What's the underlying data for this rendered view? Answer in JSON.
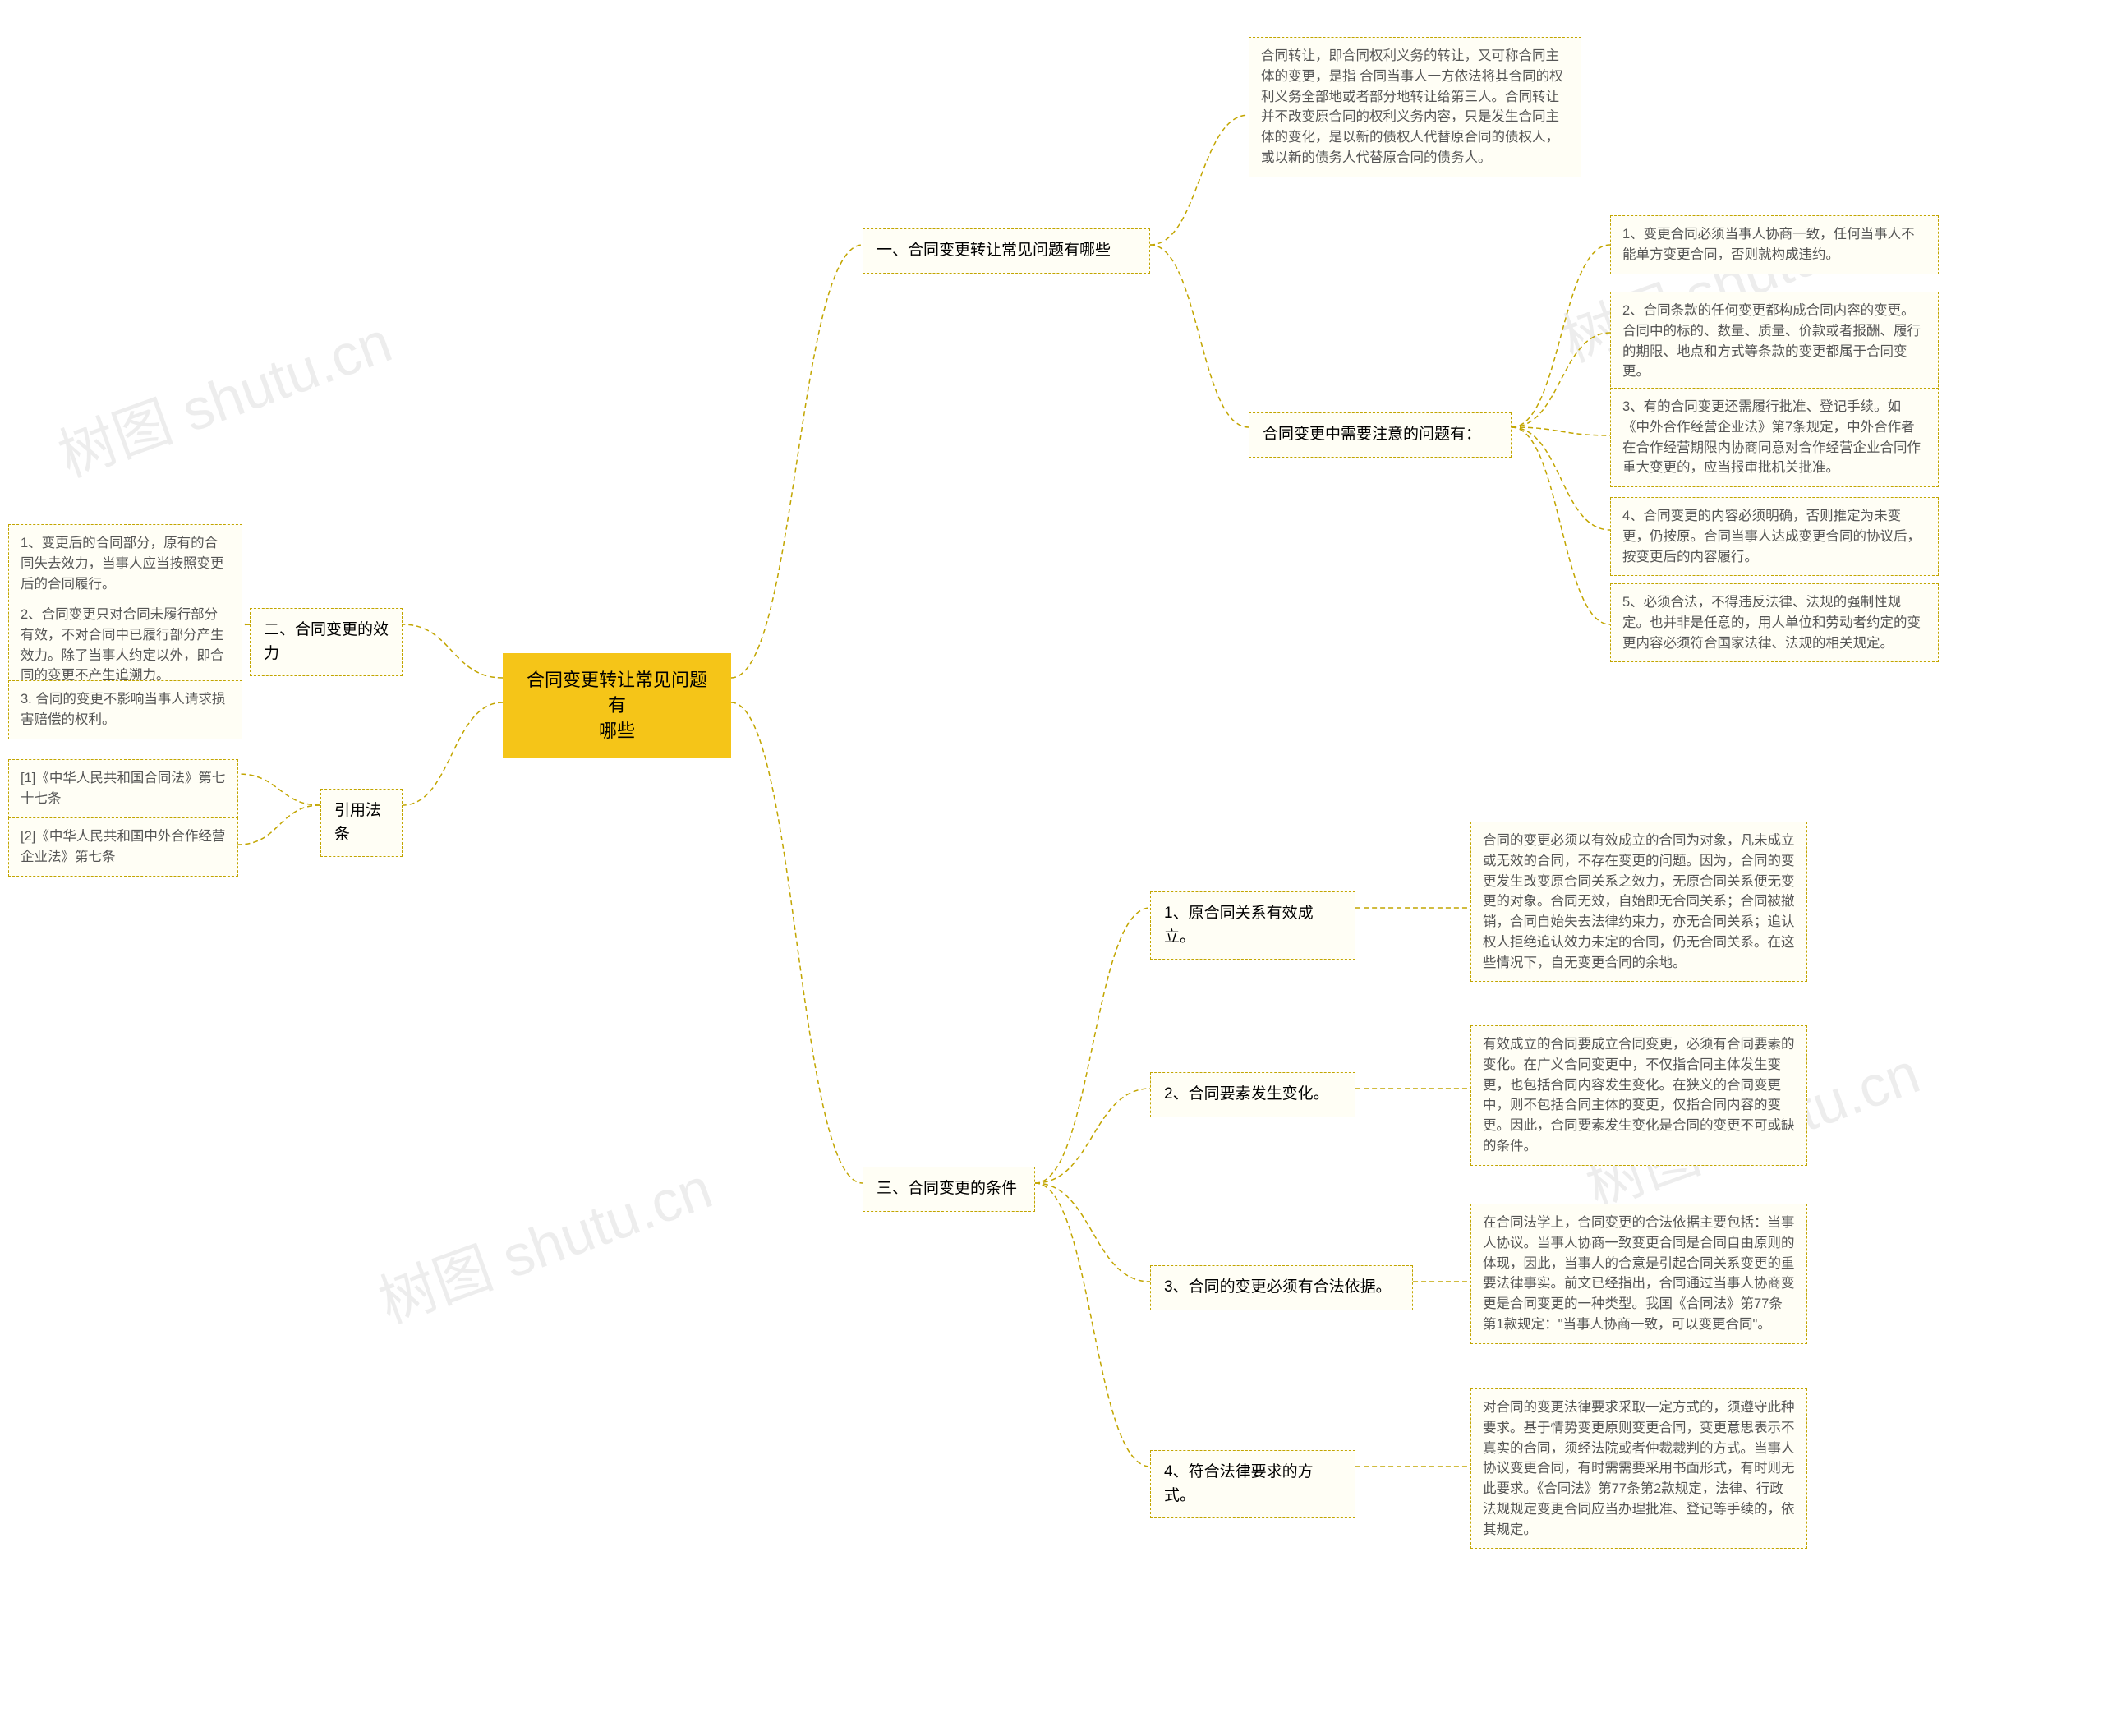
{
  "watermark": "树图 shutu.cn",
  "root": {
    "text": "合同变更转让常见问题有\n哪些"
  },
  "s1": {
    "title": "一、合同变更转让常见问题有哪些",
    "n1": "合同转让，即合同权利义务的转让，又可称合同主体的变更，是指 合同当事人一方依法将其合同的权利义务全部地或者部分地转让给第三人。合同转让并不改变原合同的权利义务内容，只是发生合同主体的变化，是以新的债权人代替原合同的债权人，或以新的债务人代替原合同的债务人。",
    "subtitle": "合同变更中需要注意的问题有：",
    "p1": "1、变更合同必须当事人协商一致，任何当事人不能单方变更合同，否则就构成违约。",
    "p2": "2、合同条款的任何变更都构成合同内容的变更。合同中的标的、数量、质量、价款或者报酬、履行的期限、地点和方式等条款的变更都属于合同变更。",
    "p3": "3、有的合同变更还需履行批准、登记手续。如《中外合作经营企业法》第7条规定，中外合作者在合作经营期限内协商同意对合作经营企业合同作重大变更的，应当报审批机关批准。",
    "p4": "4、合同变更的内容必须明确，否则推定为未变更，仍按原。合同当事人达成变更合同的协议后，按变更后的内容履行。",
    "p5": "5、必须合法，不得违反法律、法规的强制性规定。也并非是任意的，用人单位和劳动者约定的变更内容必须符合国家法律、法规的相关规定。"
  },
  "s2": {
    "title": "二、合同变更的效力",
    "p1": "1、变更后的合同部分，原有的合同失去效力，当事人应当按照变更后的合同履行。",
    "p2": "2、合同变更只对合同未履行部分有效，不对合同中已履行部分产生效力。除了当事人约定以外，即合同的变更不产生追溯力。",
    "p3": "3. 合同的变更不影响当事人请求损害赔偿的权利。"
  },
  "s3": {
    "title": "三、合同变更的条件",
    "c1_title": "1、原合同关系有效成立。",
    "c1_body": "合同的变更必须以有效成立的合同为对象，凡未成立或无效的合同，不存在变更的问题。因为，合同的变更发生改变原合同关系之效力，无原合同关系便无变更的对象。合同无效，自始即无合同关系；合同被撤销，合同自始失去法律约束力，亦无合同关系；追认权人拒绝追认效力未定的合同，仍无合同关系。在这些情况下，自无变更合同的余地。",
    "c2_title": "2、合同要素发生变化。",
    "c2_body": "有效成立的合同要成立合同变更，必须有合同要素的变化。在广义合同变更中，不仅指合同主体发生变更，也包括合同内容发生变化。在狭义的合同变更中，则不包括合同主体的变更，仅指合同内容的变更。因此，合同要素发生变化是合同的变更不可或缺的条件。",
    "c3_title": "3、合同的变更必须有合法依据。",
    "c3_body": "在合同法学上，合同变更的合法依据主要包括：当事人协议。当事人协商一致变更合同是合同自由原则的体现，因此，当事人的合意是引起合同关系变更的重要法律事实。前文已经指出，合同通过当事人协商变更是合同变更的一种类型。我国《合同法》第77条第1款规定：\"当事人协商一致，可以变更合同\"。",
    "c4_title": "4、符合法律要求的方式。",
    "c4_body": "对合同的变更法律要求采取一定方式的，须遵守此种要求。基于情势变更原则变更合同，变更意思表示不真实的合同，须经法院或者仲裁裁判的方式。当事人协议变更合同，有时需需要采用书面形式，有时则无此要求。《合同法》第77条第2款规定，法律、行政法规规定变更合同应当办理批准、登记等手续的，依其规定。"
  },
  "laws": {
    "title": "引用法条",
    "l1": "[1]《中华人民共和国合同法》第七十七条",
    "l2": "[2]《中华人民共和国中外合作经营企业法》第七条"
  },
  "style": {
    "root_bg": "#f5c518",
    "node_border": "#c2a500",
    "node_bg": "#fffef5",
    "connector_color": "#c2a500",
    "text_color": "#555"
  }
}
